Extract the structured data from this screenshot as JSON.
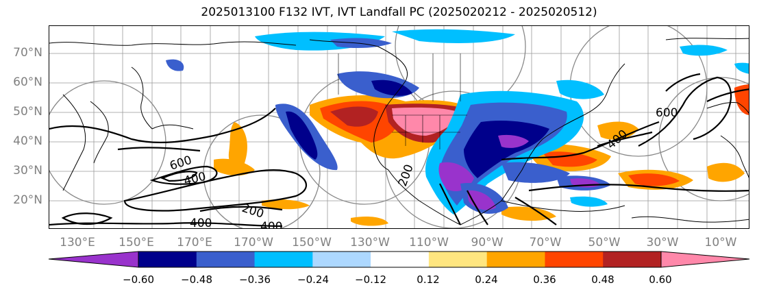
{
  "title": "2025013100 F132 IVT, IVT Landfall PC (2025020212 - 2025020512)",
  "lat_labels": [
    "70°N",
    "60°N",
    "50°N",
    "40°N",
    "30°N",
    "20°N"
  ],
  "lon_labels": [
    "130°E",
    "150°E",
    "170°E",
    "170°W",
    "150°W",
    "130°W",
    "110°W",
    "90°W",
    "70°W",
    "50°W",
    "30°W",
    "10°W"
  ],
  "contour_labels": [
    "600",
    "400",
    "200",
    "400",
    "400",
    "200",
    "400",
    "600"
  ],
  "colorbar": {
    "ticks": [
      "−0.60",
      "−0.48",
      "−0.36",
      "−0.24",
      "−0.12",
      "0.12",
      "0.24",
      "0.36",
      "0.48",
      "0.60"
    ],
    "colors": [
      "#9933cc",
      "#00008b",
      "#3a5fcd",
      "#00bfff",
      "#add8ff",
      "#ffffff",
      "#ffe680",
      "#ffa500",
      "#ff4500",
      "#b22222",
      "#ff88aa"
    ]
  }
}
